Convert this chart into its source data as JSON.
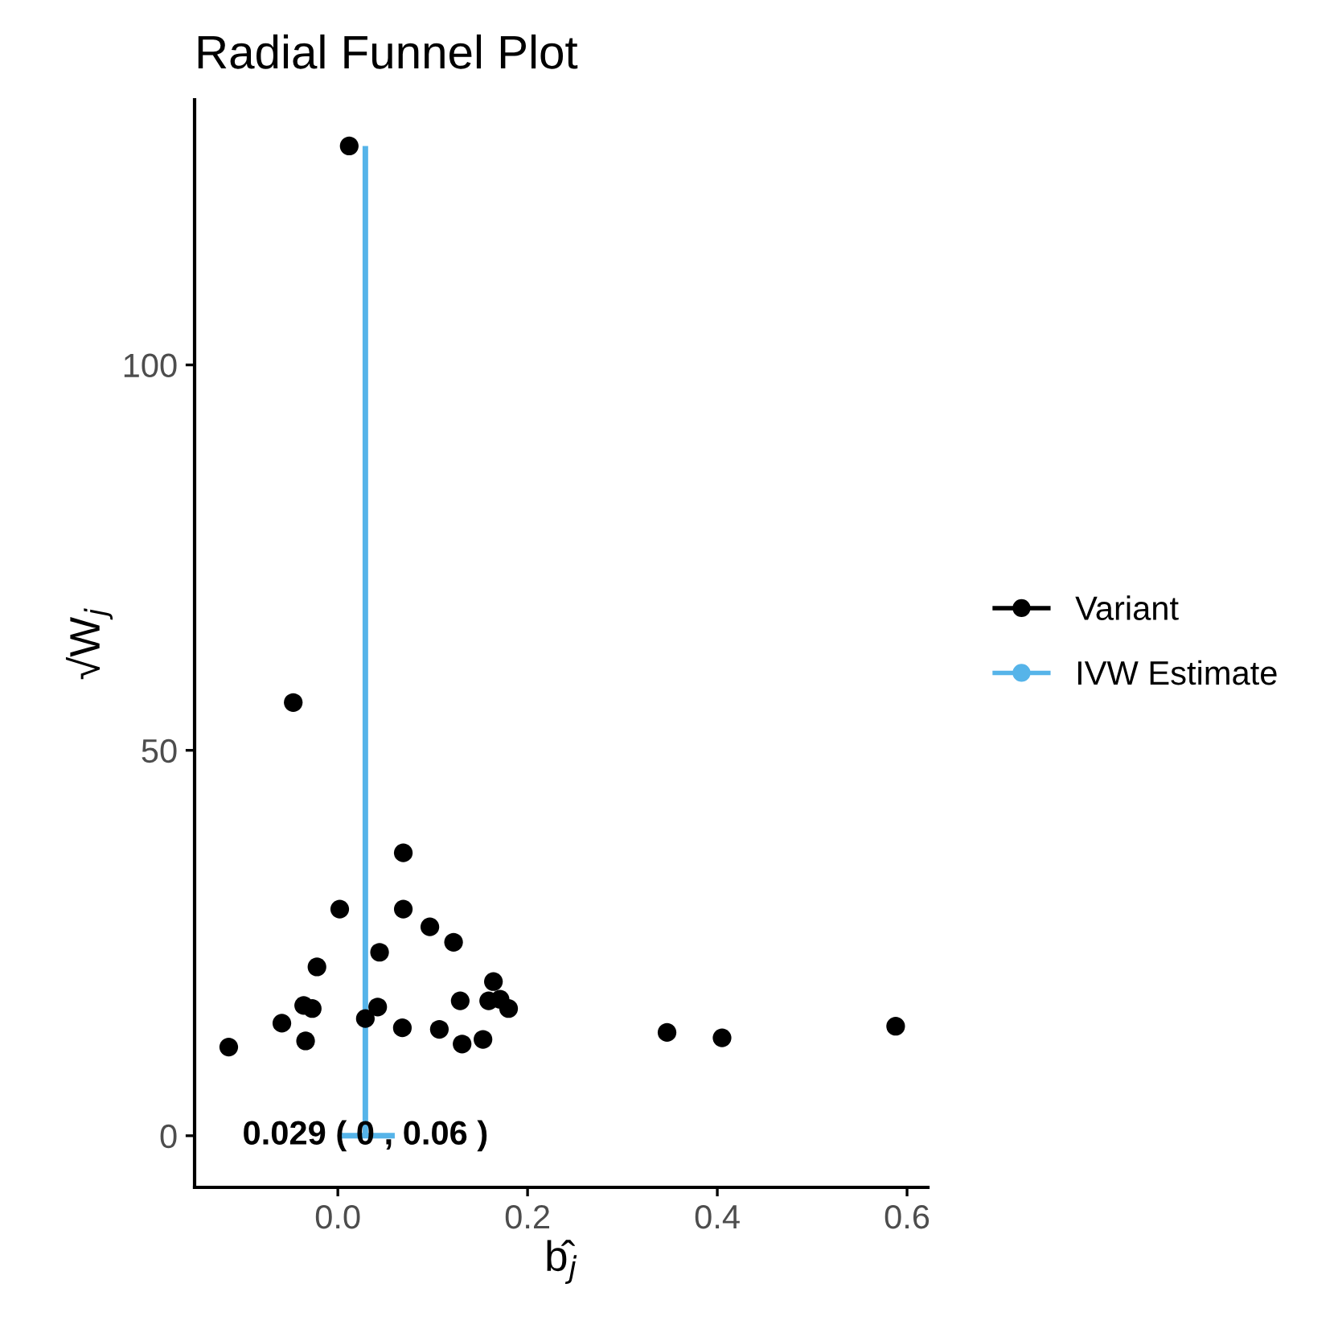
{
  "chart_data": {
    "type": "scatter",
    "title": "Radial Funnel Plot",
    "xlabel": "b̂$_{j}$",
    "ylabel": "√W$_{j}$",
    "xlim": [
      -0.151,
      0.622
    ],
    "ylim": [
      -6.7,
      134.4
    ],
    "xticks": [
      {
        "value": 0,
        "label": "0.0"
      },
      0.2,
      0.4,
      0.6
    ],
    "yticks": [
      0,
      50,
      100
    ],
    "grid": false,
    "legend": "right",
    "annotations": [
      {
        "text": "0.029 ( 0 , 0.06 )",
        "x": 0.029,
        "y": 0
      }
    ],
    "series": [
      {
        "name": "Variant",
        "color": "#000000",
        "marker": "circle",
        "x": [
          0.012,
          -0.047,
          0.069,
          0.002,
          0.069,
          0.097,
          0.122,
          0.044,
          -0.022,
          0.164,
          -0.036,
          -0.027,
          0.042,
          0.129,
          0.159,
          0.171,
          0.18,
          -0.059,
          0.029,
          0.068,
          0.107,
          0.153,
          0.131,
          -0.034,
          -0.115,
          0.347,
          0.405,
          0.588
        ],
        "values": [
          128.4,
          56.2,
          36.7,
          29.4,
          29.4,
          27.1,
          25.1,
          23.8,
          21.9,
          20.0,
          16.9,
          16.5,
          16.7,
          17.5,
          17.5,
          17.7,
          16.5,
          14.6,
          15.2,
          14.0,
          13.8,
          12.5,
          11.9,
          12.3,
          11.5,
          13.4,
          12.7,
          14.2
        ]
      },
      {
        "name": "IVW Estimate",
        "type": "line",
        "color": "#56b4e9",
        "marker": "none",
        "x": [
          0.029,
          0.029
        ],
        "values": [
          0,
          128.4
        ]
      },
      {
        "type": "line",
        "color": "#56b4e9",
        "marker": "none",
        "x": [
          0,
          0.06
        ],
        "values": [
          0,
          0
        ]
      }
    ]
  }
}
